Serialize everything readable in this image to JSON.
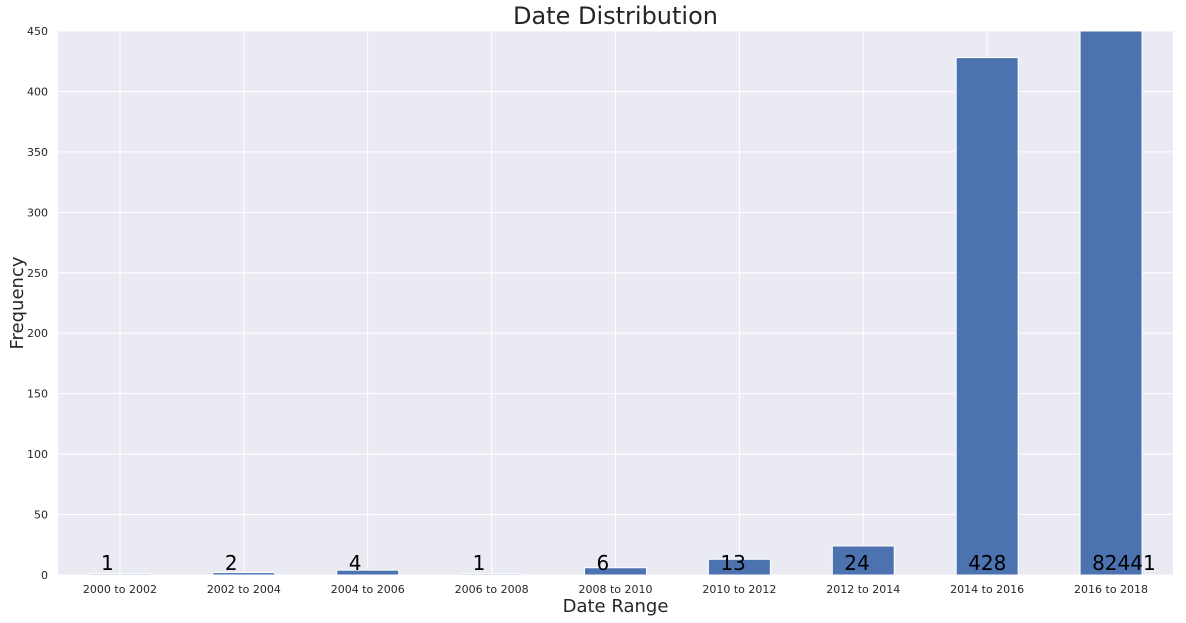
{
  "chart_data": {
    "type": "bar",
    "title": "Date Distribution",
    "xlabel": "Date Range",
    "ylabel": "Frequency",
    "categories": [
      "2000 to 2002",
      "2002 to 2004",
      "2004 to 2006",
      "2006 to 2008",
      "2008 to 2010",
      "2010 to 2012",
      "2012 to 2014",
      "2014 to 2016",
      "2016 to 2018"
    ],
    "values": [
      1,
      2,
      4,
      1,
      6,
      13,
      24,
      428,
      82441
    ],
    "data_labels": [
      "1",
      "2",
      "4",
      "1",
      "6",
      "13",
      "24",
      "428",
      "82441"
    ],
    "ylim": [
      0,
      450
    ],
    "yticks": [
      0,
      50,
      100,
      150,
      200,
      250,
      300,
      350,
      400,
      450
    ],
    "grid": true,
    "legend": "none",
    "colors": {
      "bar": "#4c72b0",
      "plot_background": "#eaeaf2",
      "grid": "#ffffff"
    }
  }
}
